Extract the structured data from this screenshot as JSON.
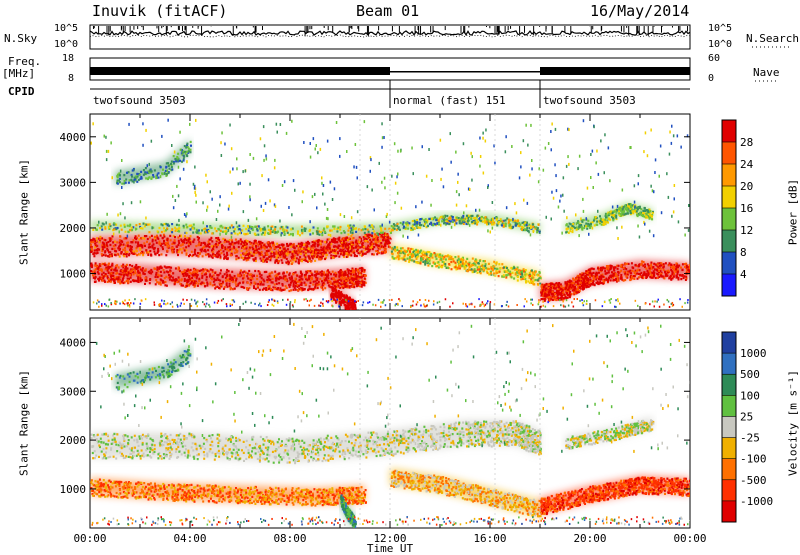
{
  "header": {
    "radar": "Inuvik (fitACF)",
    "beam": "Beam 01",
    "date": "16/May/2014"
  },
  "side_labels": {
    "nsky": "N.Sky",
    "freq": "Freq.",
    "freq_unit": "[MHz]",
    "cpid": "CPID",
    "nsearch": "N.Search",
    "nave": "Nave"
  },
  "panel_ticks": {
    "noise_left": [
      "10^5",
      "10^0"
    ],
    "noise_right": [
      "10^5",
      "10^0"
    ],
    "freq_left": [
      "18",
      "8"
    ],
    "nave_right": [
      "60",
      "0"
    ]
  },
  "cpid_segments": [
    {
      "label": "twofsound 3503",
      "start_h": 0,
      "end_h": 12
    },
    {
      "label": "normal (fast) 151",
      "start_h": 12,
      "end_h": 18
    },
    {
      "label": "twofsound 3503",
      "start_h": 18,
      "end_h": 24
    }
  ],
  "chart_data": [
    {
      "type": "heatmap",
      "name": "power-panel",
      "ylabel": "Slant Range [km]",
      "xlim": [
        0,
        24
      ],
      "ylim": [
        200,
        4500
      ],
      "yticks": [
        "1000",
        "2000",
        "3000",
        "4000"
      ],
      "colorbar": {
        "label": "Power [dB]",
        "ticks": [
          "28",
          "24",
          "20",
          "16",
          "12",
          "8",
          "4"
        ],
        "colors": [
          "#e00000",
          "#ff5500",
          "#ff9900",
          "#f2d000",
          "#6dc23a",
          "#3a8f5c",
          "#2050c0",
          "#1a1aff"
        ]
      }
    },
    {
      "type": "heatmap",
      "name": "velocity-panel",
      "ylabel": "Slant Range [km]",
      "xlabel": "Time UT",
      "xlim": [
        0,
        24
      ],
      "ylim": [
        200,
        4500
      ],
      "yticks": [
        "1000",
        "2000",
        "3000",
        "4000"
      ],
      "xticks": [
        "00:00",
        "04:00",
        "08:00",
        "12:00",
        "16:00",
        "20:00",
        "00:00"
      ],
      "colorbar": {
        "label": "Velocity [m s⁻¹]",
        "ticks": [
          "1000",
          "500",
          "100",
          "25",
          "-25",
          "-100",
          "-500",
          "-1000"
        ],
        "colors": [
          "#2040a0",
          "#3070c0",
          "#2e8b57",
          "#60c040",
          "#c8c8c0",
          "#f0b000",
          "#ff7000",
          "#ff3000",
          "#e00000"
        ]
      }
    }
  ]
}
